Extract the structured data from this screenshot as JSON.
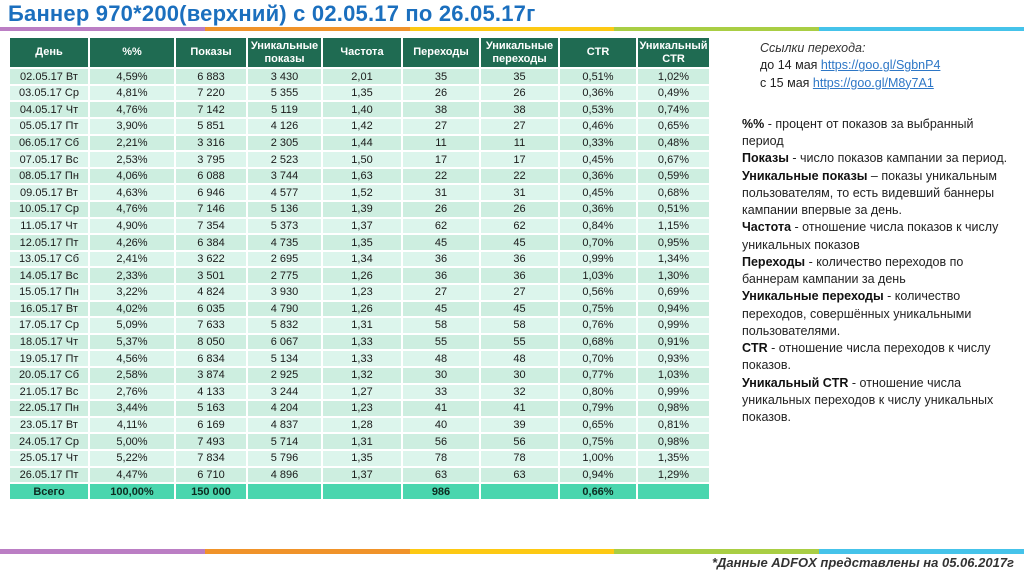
{
  "title": "Баннер 970*200(верхний) с 02.05.17 по 26.05.17г",
  "stripe_colors": [
    "#bb7ec4",
    "#f0932a",
    "#fdc913",
    "#a9ce44",
    "#45c3ea"
  ],
  "colors": {
    "header_bg": "#1f6b52",
    "row_light": "#cdeee0",
    "row_lighter": "#dcf5ec",
    "total_bg": "#4ad6ae",
    "title_blue": "#1b6fbe",
    "link_blue": "#2e77c6"
  },
  "table": {
    "columns": [
      "День",
      "%%",
      "Показы",
      "Уникальные показы",
      "Частота",
      "Переходы",
      "Уникальные переходы",
      "CTR",
      "Уникальный CTR"
    ],
    "rows": [
      [
        "02.05.17 Вт",
        "4,59%",
        "6 883",
        "3 430",
        "2,01",
        "35",
        "35",
        "0,51%",
        "1,02%"
      ],
      [
        "03.05.17 Ср",
        "4,81%",
        "7 220",
        "5 355",
        "1,35",
        "26",
        "26",
        "0,36%",
        "0,49%"
      ],
      [
        "04.05.17 Чт",
        "4,76%",
        "7 142",
        "5 119",
        "1,40",
        "38",
        "38",
        "0,53%",
        "0,74%"
      ],
      [
        "05.05.17 Пт",
        "3,90%",
        "5 851",
        "4 126",
        "1,42",
        "27",
        "27",
        "0,46%",
        "0,65%"
      ],
      [
        "06.05.17 Сб",
        "2,21%",
        "3 316",
        "2 305",
        "1,44",
        "11",
        "11",
        "0,33%",
        "0,48%"
      ],
      [
        "07.05.17 Вс",
        "2,53%",
        "3 795",
        "2 523",
        "1,50",
        "17",
        "17",
        "0,45%",
        "0,67%"
      ],
      [
        "08.05.17 Пн",
        "4,06%",
        "6 088",
        "3 744",
        "1,63",
        "22",
        "22",
        "0,36%",
        "0,59%"
      ],
      [
        "09.05.17 Вт",
        "4,63%",
        "6 946",
        "4 577",
        "1,52",
        "31",
        "31",
        "0,45%",
        "0,68%"
      ],
      [
        "10.05.17 Ср",
        "4,76%",
        "7 146",
        "5 136",
        "1,39",
        "26",
        "26",
        "0,36%",
        "0,51%"
      ],
      [
        "11.05.17 Чт",
        "4,90%",
        "7 354",
        "5 373",
        "1,37",
        "62",
        "62",
        "0,84%",
        "1,15%"
      ],
      [
        "12.05.17 Пт",
        "4,26%",
        "6 384",
        "4 735",
        "1,35",
        "45",
        "45",
        "0,70%",
        "0,95%"
      ],
      [
        "13.05.17 Сб",
        "2,41%",
        "3 622",
        "2 695",
        "1,34",
        "36",
        "36",
        "0,99%",
        "1,34%"
      ],
      [
        "14.05.17 Вс",
        "2,33%",
        "3 501",
        "2 775",
        "1,26",
        "36",
        "36",
        "1,03%",
        "1,30%"
      ],
      [
        "15.05.17 Пн",
        "3,22%",
        "4 824",
        "3 930",
        "1,23",
        "27",
        "27",
        "0,56%",
        "0,69%"
      ],
      [
        "16.05.17 Вт",
        "4,02%",
        "6 035",
        "4 790",
        "1,26",
        "45",
        "45",
        "0,75%",
        "0,94%"
      ],
      [
        "17.05.17 Ср",
        "5,09%",
        "7 633",
        "5 832",
        "1,31",
        "58",
        "58",
        "0,76%",
        "0,99%"
      ],
      [
        "18.05.17 Чт",
        "5,37%",
        "8 050",
        "6 067",
        "1,33",
        "55",
        "55",
        "0,68%",
        "0,91%"
      ],
      [
        "19.05.17 Пт",
        "4,56%",
        "6 834",
        "5 134",
        "1,33",
        "48",
        "48",
        "0,70%",
        "0,93%"
      ],
      [
        "20.05.17 Сб",
        "2,58%",
        "3 874",
        "2 925",
        "1,32",
        "30",
        "30",
        "0,77%",
        "1,03%"
      ],
      [
        "21.05.17 Вс",
        "2,76%",
        "4 133",
        "3 244",
        "1,27",
        "33",
        "32",
        "0,80%",
        "0,99%"
      ],
      [
        "22.05.17 Пн",
        "3,44%",
        "5 163",
        "4 204",
        "1,23",
        "41",
        "41",
        "0,79%",
        "0,98%"
      ],
      [
        "23.05.17 Вт",
        "4,11%",
        "6 169",
        "4 837",
        "1,28",
        "40",
        "39",
        "0,65%",
        "0,81%"
      ],
      [
        "24.05.17 Ср",
        "5,00%",
        "7 493",
        "5 714",
        "1,31",
        "56",
        "56",
        "0,75%",
        "0,98%"
      ],
      [
        "25.05.17 Чт",
        "5,22%",
        "7 834",
        "5 796",
        "1,35",
        "78",
        "78",
        "1,00%",
        "1,35%"
      ],
      [
        "26.05.17 Пт",
        "4,47%",
        "6 710",
        "4 896",
        "1,37",
        "63",
        "63",
        "0,94%",
        "1,29%"
      ]
    ],
    "total": [
      "Всего",
      "100,00%",
      "150 000",
      "",
      "",
      "986",
      "",
      "0,66%",
      ""
    ]
  },
  "links": {
    "heading": "Ссылки перехода:",
    "items": [
      {
        "prefix": "до 14 мая ",
        "url": "https://goo.gl/SgbnP4"
      },
      {
        "prefix": "с 15 мая ",
        "url": "https://goo.gl/M8y7A1"
      }
    ]
  },
  "definitions": [
    {
      "term": "%%",
      "text": " - процент от показов за выбранный период"
    },
    {
      "term": "Показы",
      "text": " - число показов кампании за период."
    },
    {
      "term": "Уникальные показы",
      "text": " – показы уникальным пользователям, то есть видевший баннеры кампании впервые за день."
    },
    {
      "term": "Частота",
      "text": " - отношение числа показов к числу уникальных показов"
    },
    {
      "term": "Переходы",
      "text": " - количество переходов по баннерам кампании за день"
    },
    {
      "term": "Уникальные переходы",
      "text": " - количество переходов, совершённых уникальными пользователями."
    },
    {
      "term": "CTR",
      "text": " - отношение числа переходов к числу показов."
    },
    {
      "term": "Уникальный CTR",
      "text": " - отношение числа уникальных переходов к числу уникальных показов."
    }
  ],
  "footer": "*Данные ADFOX представлены на 05.06.2017г"
}
